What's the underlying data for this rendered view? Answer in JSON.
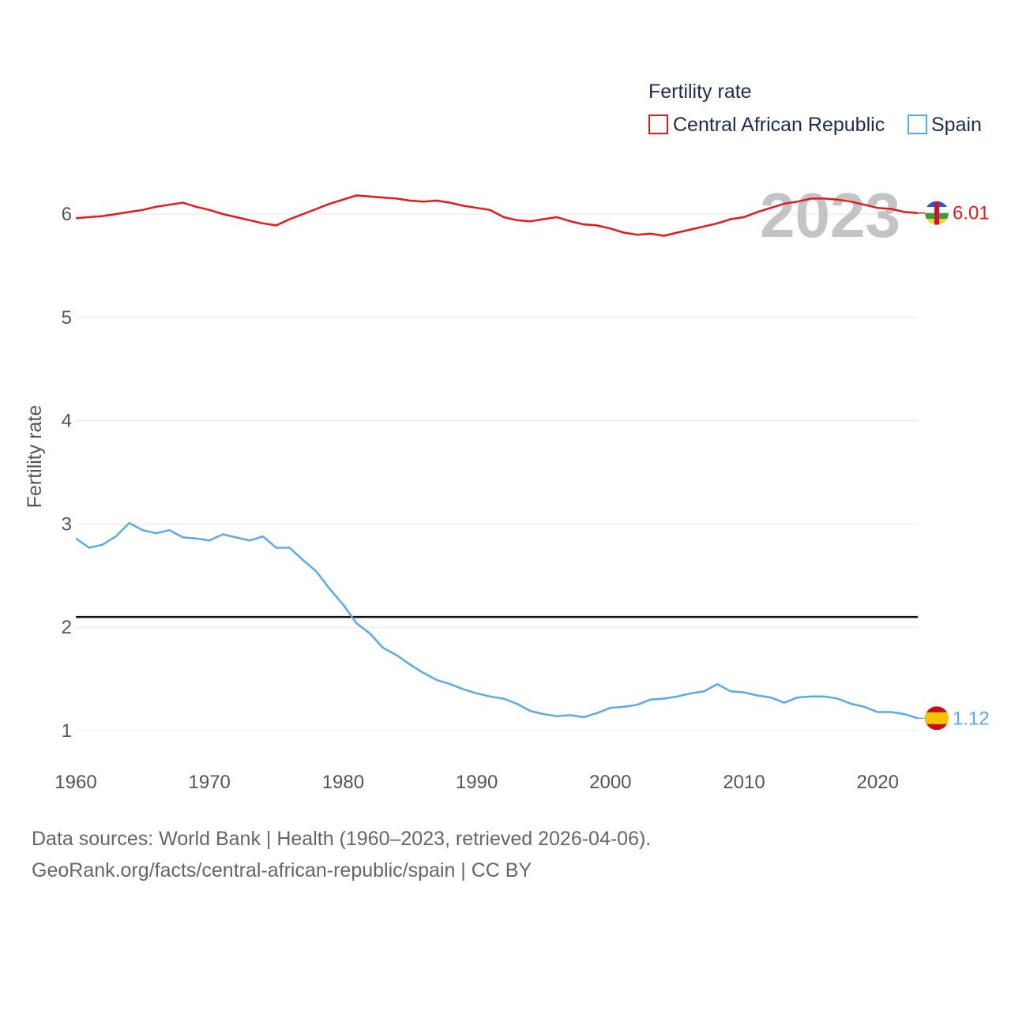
{
  "chart_data": {
    "type": "line",
    "title": "",
    "legend_title": "Fertility rate",
    "ylabel": "Fertility rate",
    "xlabel": "",
    "year_watermark": "2023",
    "xlim": [
      1960,
      2023
    ],
    "ylim": [
      0.55,
      6.8
    ],
    "x_ticks": [
      1960,
      1970,
      1980,
      1990,
      2000,
      2010,
      2020
    ],
    "y_ticks": [
      1,
      2,
      3,
      4,
      5,
      6
    ],
    "reference_line": {
      "y": 2.1,
      "color": "#111111"
    },
    "x": [
      1960,
      1961,
      1962,
      1963,
      1964,
      1965,
      1966,
      1967,
      1968,
      1969,
      1970,
      1971,
      1972,
      1973,
      1974,
      1975,
      1976,
      1977,
      1978,
      1979,
      1980,
      1981,
      1982,
      1983,
      1984,
      1985,
      1986,
      1987,
      1988,
      1989,
      1990,
      1991,
      1992,
      1993,
      1994,
      1995,
      1996,
      1997,
      1998,
      1999,
      2000,
      2001,
      2002,
      2003,
      2004,
      2005,
      2006,
      2007,
      2008,
      2009,
      2010,
      2011,
      2012,
      2013,
      2014,
      2015,
      2016,
      2017,
      2018,
      2019,
      2020,
      2021,
      2022,
      2023
    ],
    "series": [
      {
        "name": "Central African Republic",
        "color": "#e31a1c",
        "end_label": "6.01",
        "values": [
          5.96,
          5.97,
          5.98,
          6.0,
          6.02,
          6.04,
          6.07,
          6.09,
          6.11,
          6.07,
          6.04,
          6.0,
          5.97,
          5.94,
          5.91,
          5.89,
          5.95,
          6.0,
          6.05,
          6.1,
          6.14,
          6.18,
          6.17,
          6.16,
          6.15,
          6.13,
          6.12,
          6.13,
          6.11,
          6.08,
          6.06,
          6.04,
          5.97,
          5.94,
          5.93,
          5.95,
          5.97,
          5.93,
          5.9,
          5.89,
          5.86,
          5.82,
          5.8,
          5.81,
          5.79,
          5.82,
          5.85,
          5.88,
          5.91,
          5.95,
          5.97,
          6.02,
          6.06,
          6.1,
          6.12,
          6.15,
          6.15,
          6.14,
          6.12,
          6.09,
          6.06,
          6.05,
          6.02,
          6.01
        ]
      },
      {
        "name": "Spain",
        "color": "#5ea8e6",
        "end_label": "1.12",
        "values": [
          2.86,
          2.77,
          2.8,
          2.88,
          3.01,
          2.94,
          2.91,
          2.94,
          2.87,
          2.86,
          2.84,
          2.9,
          2.87,
          2.84,
          2.88,
          2.77,
          2.77,
          2.65,
          2.54,
          2.37,
          2.22,
          2.04,
          1.94,
          1.8,
          1.73,
          1.64,
          1.56,
          1.49,
          1.45,
          1.4,
          1.36,
          1.33,
          1.31,
          1.26,
          1.19,
          1.16,
          1.14,
          1.15,
          1.13,
          1.17,
          1.22,
          1.23,
          1.25,
          1.3,
          1.31,
          1.33,
          1.36,
          1.38,
          1.45,
          1.38,
          1.37,
          1.34,
          1.32,
          1.27,
          1.32,
          1.33,
          1.33,
          1.31,
          1.26,
          1.23,
          1.18,
          1.18,
          1.16,
          1.12
        ]
      }
    ]
  },
  "source": {
    "line1": "Data sources: World Bank | Health (1960–2023, retrieved 2026-04-06).",
    "line2": "GeoRank.org/facts/central-african-republic/spain | CC BY"
  }
}
